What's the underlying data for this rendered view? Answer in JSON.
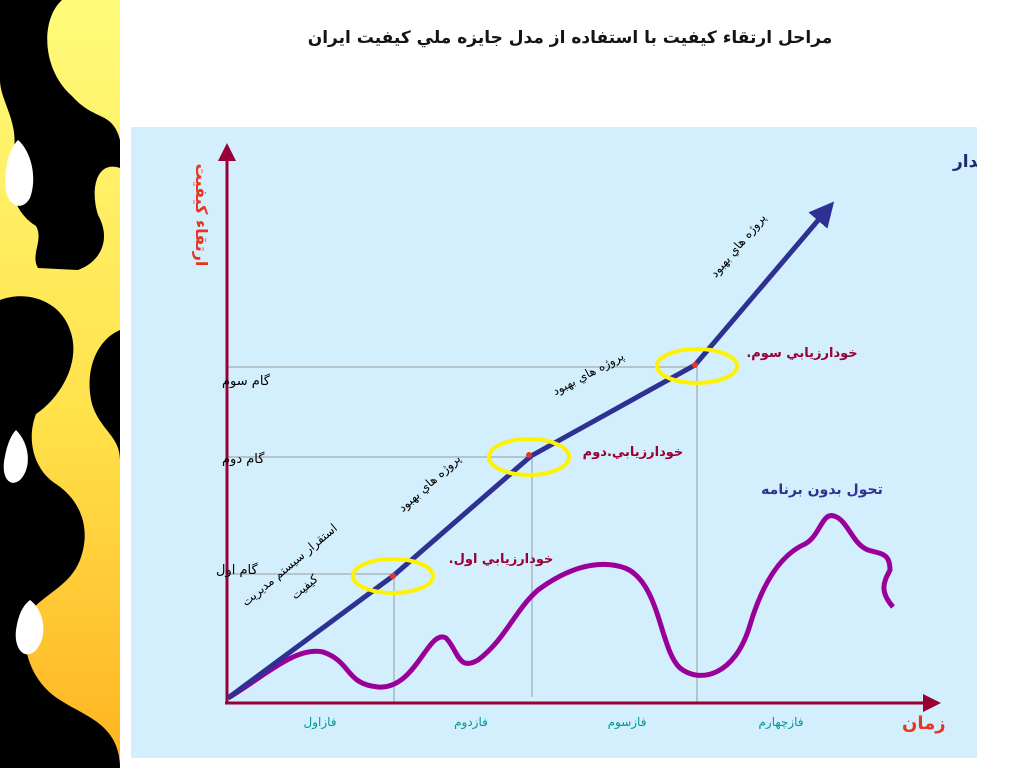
{
  "title": "مراحل ارتقاء كيفيت با استفاده از مدل جايزه ملي كيفيت ايران",
  "goal_label": "به‌سوي موفقيت پايدار",
  "y_axis_label": "ارتقاء كيفيت",
  "x_axis_label": "زمان",
  "steps": [
    "گام اول",
    "گام دوم",
    "گام سوم"
  ],
  "phases": [
    "فازاول",
    "فازدوم",
    "فازسوم",
    "فازچهارم"
  ],
  "self_assessments": [
    "خودارزيابي اول.",
    "خودارزيابي.دوم",
    "خودارزيابي سوم."
  ],
  "improvement_projects": [
    "پروژه هاي بهبود",
    "پروژه هاي بهبود",
    "پروژه هاي بهبود"
  ],
  "qms_label_line1": "استقرار سيستم مديريت",
  "qms_label_line2": "كيفيت",
  "unplanned_label": "تحول بدون برنامه",
  "colors": {
    "main_line": "#2e3192",
    "axes": "#990033",
    "unplanned_curve": "#990099",
    "milestone_ring": "#fff200",
    "milestone_dot": "#e23a2a",
    "phase_text": "#009999",
    "self_assessment_text": "#990033",
    "axis_label": "#e8361c"
  },
  "icons": [
    "black-white-silhouette-decoration"
  ]
}
